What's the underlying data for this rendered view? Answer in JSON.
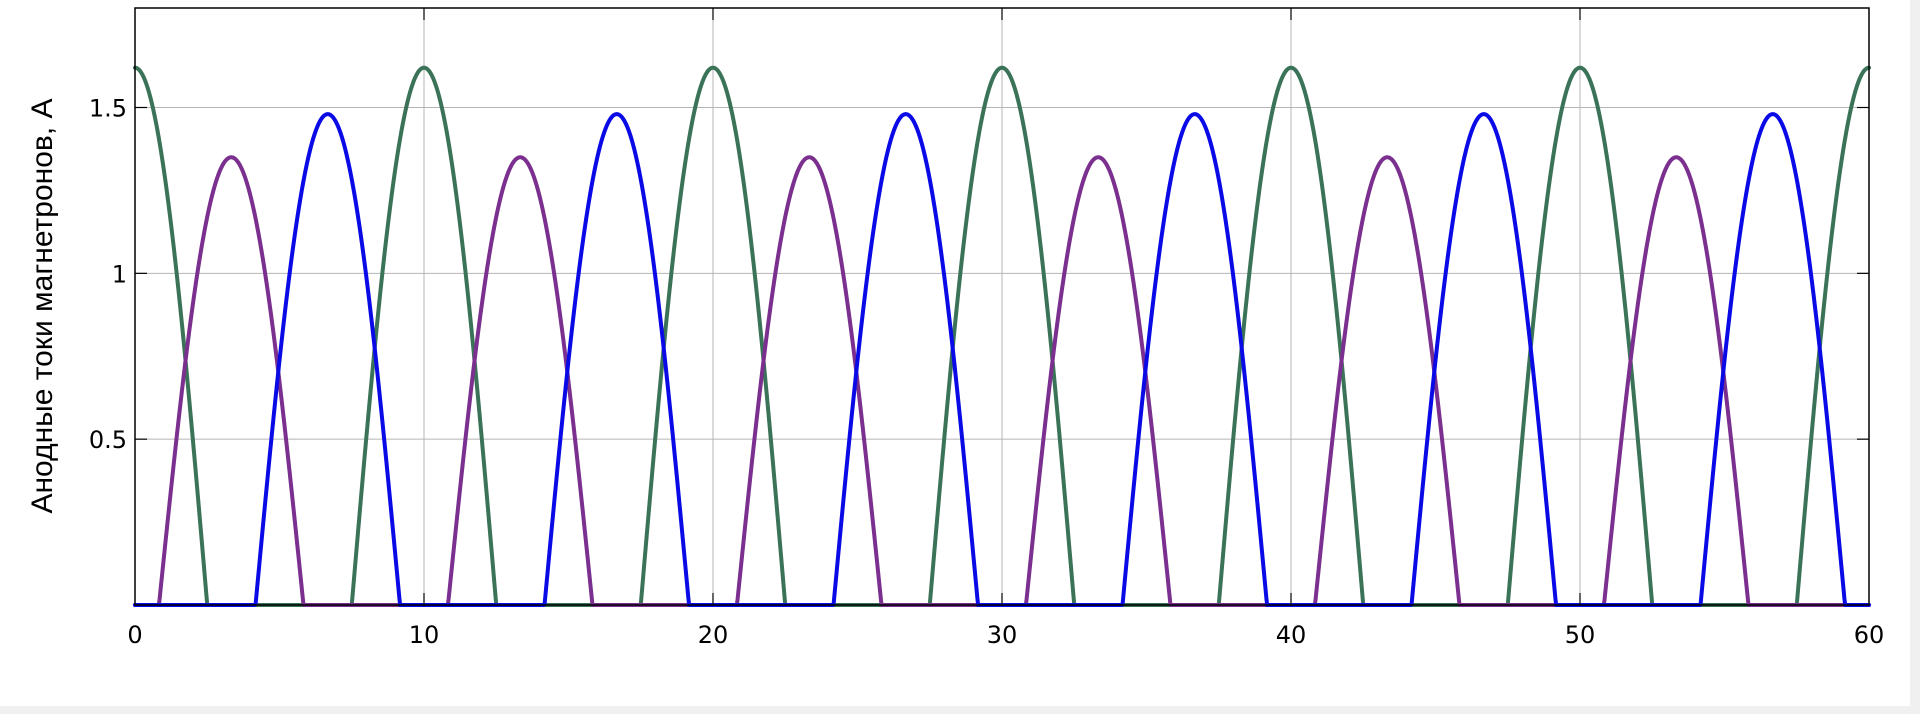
{
  "chart_data": {
    "type": "line",
    "title": "",
    "xlabel": "",
    "ylabel": "Анодные токи магнетронов, А",
    "xlim": [
      0,
      60
    ],
    "ylim": [
      0,
      1.8
    ],
    "grid": true,
    "legend": "none",
    "x_ticks": [
      0,
      10,
      20,
      30,
      40,
      50,
      60
    ],
    "x_tick_labels": [
      "0",
      "10",
      "20",
      "30",
      "40",
      "50",
      "60"
    ],
    "y_ticks": [
      0.5,
      1,
      1.5
    ],
    "y_tick_labels": [
      "0.5",
      "1",
      "1.5"
    ],
    "series": [
      {
        "color": "#3a7358",
        "amplitude": 1.62,
        "period": 10,
        "positive_half_wave": true,
        "peaks_at": [
          0,
          10,
          20,
          30,
          40,
          50,
          60
        ],
        "zero_between": [
          [
            2.6,
            7.4
          ],
          [
            12.6,
            17.4
          ],
          [
            22.6,
            27.4
          ],
          [
            32.6,
            37.4
          ],
          [
            42.6,
            47.4
          ],
          [
            52.6,
            57.4
          ]
        ]
      },
      {
        "color": "#7b2f8e",
        "amplitude": 1.35,
        "period": 10,
        "positive_half_wave": true,
        "peaks_at": [
          3.33,
          13.33,
          23.33,
          33.33,
          43.33,
          53.33
        ],
        "zero_between": [
          [
            5.8,
            10.9
          ],
          [
            15.8,
            20.9
          ],
          [
            25.8,
            30.9
          ],
          [
            35.8,
            40.9
          ],
          [
            45.8,
            50.9
          ],
          [
            55.8,
            60
          ]
        ]
      },
      {
        "color": "#0a0ae6",
        "amplitude": 1.48,
        "period": 10,
        "positive_half_wave": true,
        "peaks_at": [
          6.67,
          16.67,
          26.67,
          36.67,
          46.67,
          56.67
        ],
        "zero_between": [
          [
            0,
            2.5
          ],
          [
            9.2,
            14.1
          ],
          [
            19.2,
            24.1
          ],
          [
            29.2,
            34.1
          ],
          [
            39.2,
            44.1
          ],
          [
            49.2,
            54.1
          ],
          [
            59.2,
            60
          ]
        ]
      }
    ]
  }
}
